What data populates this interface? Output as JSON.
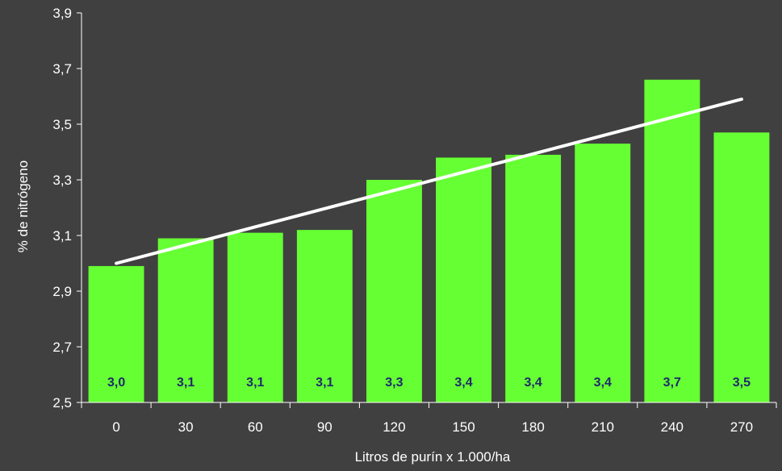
{
  "chart_data": {
    "type": "bar",
    "categories": [
      "0",
      "30",
      "60",
      "90",
      "120",
      "150",
      "180",
      "210",
      "240",
      "270"
    ],
    "values": [
      2.99,
      3.09,
      3.11,
      3.12,
      3.3,
      3.38,
      3.39,
      3.43,
      3.66,
      3.47
    ],
    "data_labels": [
      "3,0",
      "3,1",
      "3,1",
      "3,1",
      "3,3",
      "3,4",
      "3,4",
      "3,4",
      "3,7",
      "3,5"
    ],
    "trendline": {
      "start": 3.0,
      "end": 3.59
    },
    "xlabel": "Litros de purín x 1.000/ha",
    "ylabel": "% de nitrógeno",
    "ylim": [
      2.5,
      3.9
    ],
    "yticks": [
      2.5,
      2.7,
      2.9,
      3.1,
      3.3,
      3.5,
      3.7,
      3.9
    ],
    "ytick_labels": [
      "2,5",
      "2,7",
      "2,9",
      "3,1",
      "3,3",
      "3,5",
      "3,7",
      "3,9"
    ],
    "grid": false,
    "legend": "none",
    "colors": {
      "background": "#404040",
      "bar": "#66ff33",
      "trendline": "#ffffff",
      "data_label": "#1f2a6b",
      "axis": "#ffffff"
    }
  }
}
